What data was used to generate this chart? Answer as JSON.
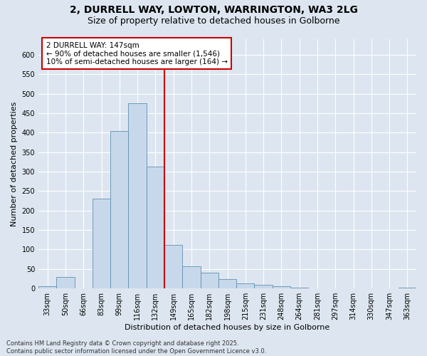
{
  "title_line1": "2, DURRELL WAY, LOWTON, WARRINGTON, WA3 2LG",
  "title_line2": "Size of property relative to detached houses in Golborne",
  "xlabel": "Distribution of detached houses by size in Golborne",
  "ylabel": "Number of detached properties",
  "footer_line1": "Contains HM Land Registry data © Crown copyright and database right 2025.",
  "footer_line2": "Contains public sector information licensed under the Open Government Licence v3.0.",
  "annotation_title": "2 DURRELL WAY: 147sqm",
  "annotation_line1": "← 90% of detached houses are smaller (1,546)",
  "annotation_line2": "10% of semi-detached houses are larger (164) →",
  "bar_color": "#c8d8eb",
  "bar_edge_color": "#6090b0",
  "vline_color": "#cc0000",
  "annotation_box_color": "#ffffff",
  "annotation_box_edge": "#cc0000",
  "background_color": "#dde6f0",
  "categories": [
    "33sqm",
    "50sqm",
    "66sqm",
    "83sqm",
    "99sqm",
    "116sqm",
    "132sqm",
    "149sqm",
    "165sqm",
    "182sqm",
    "198sqm",
    "215sqm",
    "231sqm",
    "248sqm",
    "264sqm",
    "281sqm",
    "297sqm",
    "314sqm",
    "330sqm",
    "347sqm",
    "363sqm"
  ],
  "bin_left_edges": [
    0,
    1,
    2,
    3,
    4,
    5,
    6,
    7,
    8,
    9,
    10,
    11,
    12,
    13,
    14,
    15,
    16,
    17,
    18,
    19,
    20
  ],
  "values": [
    5,
    30,
    0,
    230,
    405,
    475,
    313,
    112,
    57,
    40,
    25,
    13,
    10,
    5,
    2,
    0,
    0,
    0,
    0,
    0,
    2
  ],
  "vline_bin": 7,
  "ylim": [
    0,
    640
  ],
  "yticks": [
    0,
    50,
    100,
    150,
    200,
    250,
    300,
    350,
    400,
    450,
    500,
    550,
    600
  ],
  "grid_color": "#ffffff",
  "title_fontsize": 10,
  "subtitle_fontsize": 9,
  "axis_label_fontsize": 8,
  "tick_fontsize": 7,
  "annotation_fontsize": 7.5,
  "footer_fontsize": 6
}
